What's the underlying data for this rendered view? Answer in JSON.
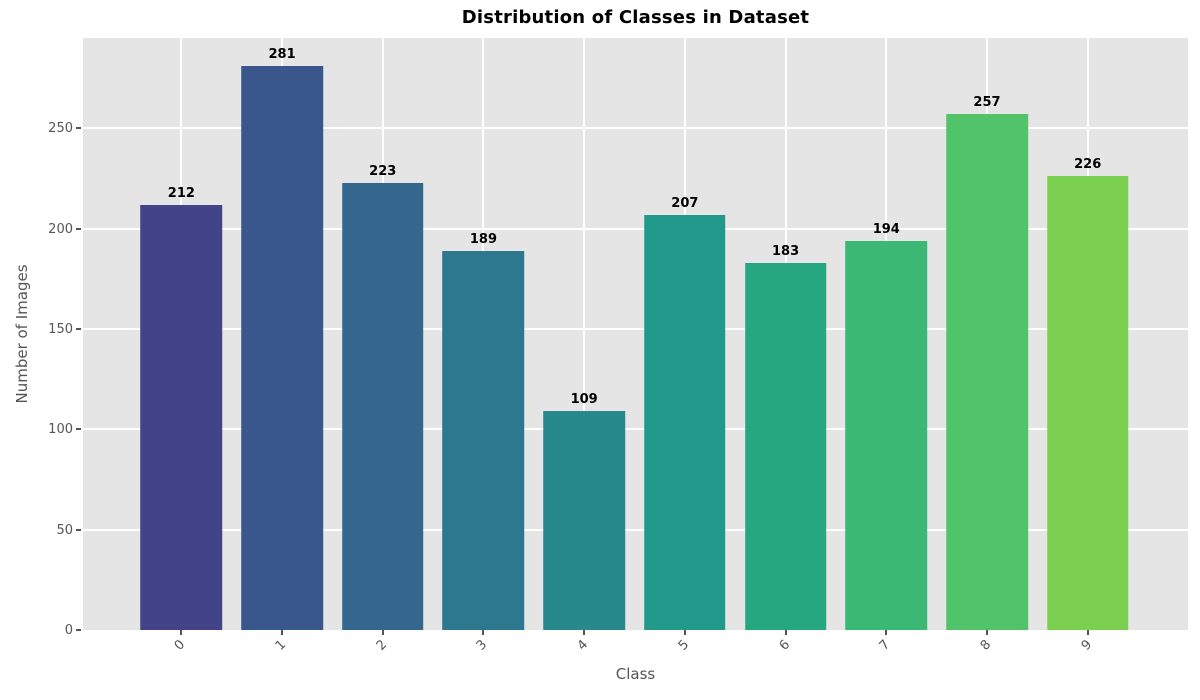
{
  "chart_data": {
    "type": "bar",
    "title": "Distribution of Classes in Dataset",
    "xlabel": "Class",
    "ylabel": "Number of Images",
    "categories": [
      "0",
      "1",
      "2",
      "3",
      "4",
      "5",
      "6",
      "7",
      "8",
      "9"
    ],
    "values": [
      212,
      281,
      223,
      189,
      109,
      207,
      183,
      194,
      257,
      226
    ],
    "bar_colors": [
      "#424487",
      "#39578c",
      "#33678e",
      "#2d788e",
      "#28898d",
      "#21998b",
      "#26a77f",
      "#3bb873",
      "#51c46a",
      "#7bd14f"
    ],
    "yticks": [
      0,
      50,
      100,
      150,
      200,
      250
    ],
    "yticklabels": [
      "0",
      "50",
      "100",
      "150",
      "200",
      "250"
    ],
    "ylim": [
      0,
      295
    ],
    "grid": "both",
    "legend_position": "none",
    "colors": {
      "plot_background": "#e5e5e5",
      "figure_background": "#ffffff",
      "gridline": "#ffffff",
      "tick": "#555555",
      "tick_label": "#555555",
      "axis_label": "#555555",
      "title": "#000000",
      "value_label": "#000000"
    },
    "x_tick_rotation_deg": 45
  }
}
